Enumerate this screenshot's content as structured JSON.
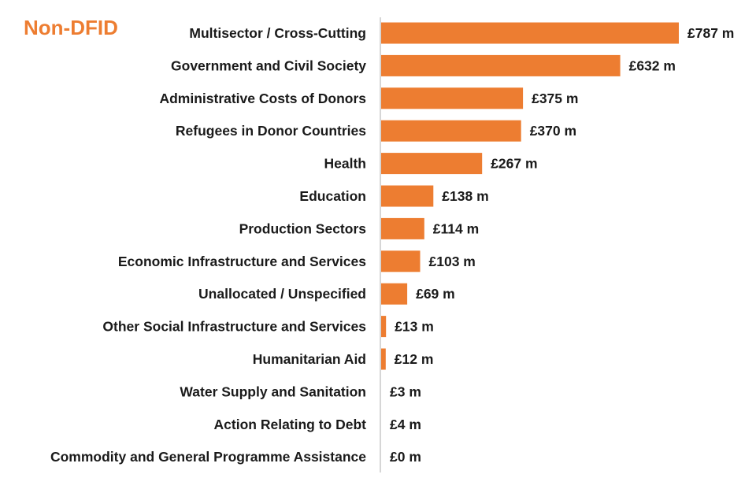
{
  "chart_data": {
    "type": "bar",
    "orientation": "horizontal",
    "title": "Non-DFID",
    "unit_prefix": "£",
    "unit_suffix": " m",
    "bar_color": "#ED7D31",
    "title_color": "#ED7D31",
    "xlim": [
      0,
      800
    ],
    "grid": false,
    "legend": "none",
    "categories": [
      "Multisector / Cross-Cutting",
      "Government and Civil Society",
      "Administrative Costs of Donors",
      "Refugees in Donor Countries",
      "Health",
      "Education",
      "Production Sectors",
      "Economic Infrastructure and Services",
      "Unallocated / Unspecified",
      "Other Social Infrastructure and Services",
      "Humanitarian Aid",
      "Water Supply and Sanitation",
      "Action Relating to Debt",
      "Commodity and General Programme Assistance"
    ],
    "values": [
      787,
      632,
      375,
      370,
      267,
      138,
      114,
      103,
      69,
      13,
      12,
      3,
      4,
      0
    ],
    "value_labels": [
      "£787 m",
      "£632 m",
      "£375 m",
      "£370 m",
      "£267 m",
      "£138 m",
      "£114 m",
      "£103 m",
      "£69 m",
      "£13 m",
      "£12 m",
      "£3 m",
      "£4 m",
      "£0 m"
    ]
  }
}
